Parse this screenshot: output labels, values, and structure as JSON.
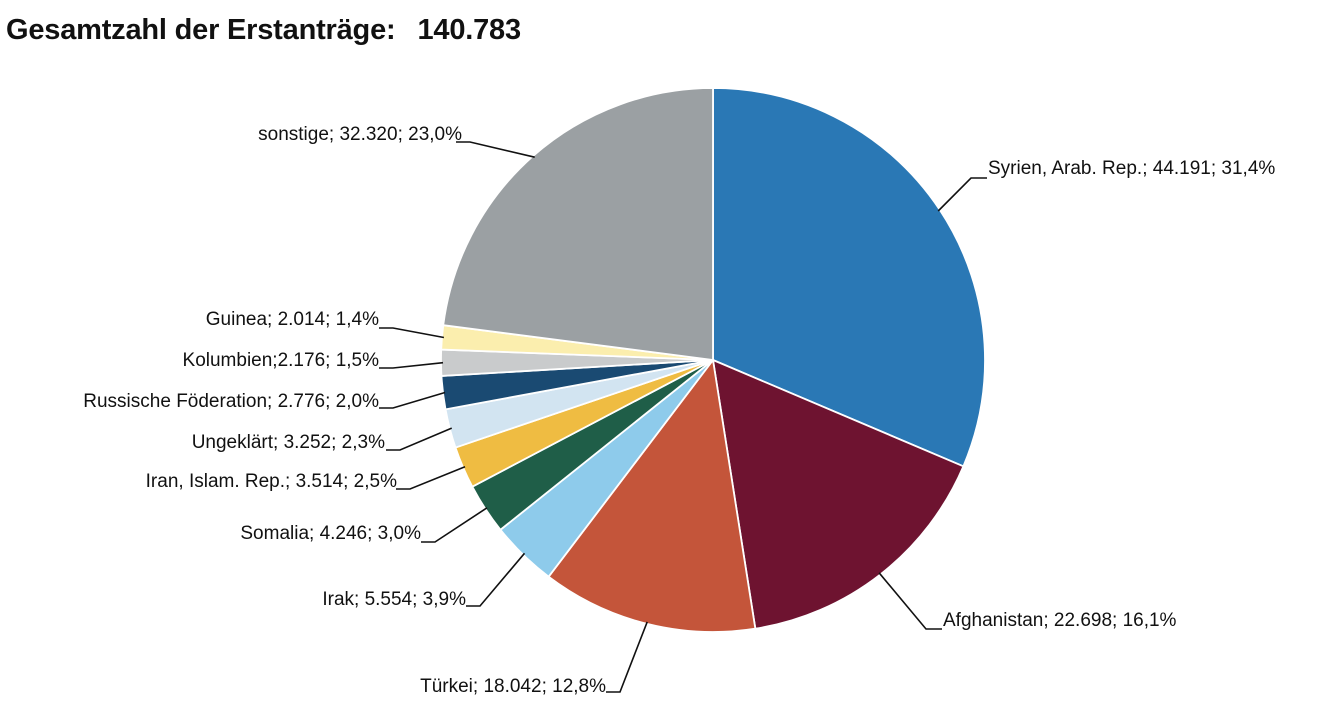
{
  "title": {
    "label": "Gesamtzahl der Erstanträge:",
    "total": "140.783"
  },
  "chart_data": {
    "type": "pie",
    "title": "Gesamtzahl der Erstanträge: 140.783",
    "slices": [
      {
        "name": "Syrien, Arab. Rep.",
        "value": 44191,
        "percent": "31,4%",
        "label": "Syrien, Arab. Rep.; 44.191; 31,4%",
        "color": "#2a78b5"
      },
      {
        "name": "Afghanistan",
        "value": 22698,
        "percent": "16,1%",
        "label": "Afghanistan; 22.698; 16,1%",
        "color": "#6e1330"
      },
      {
        "name": "Türkei",
        "value": 18042,
        "percent": "12,8%",
        "label": "Türkei; 18.042; 12,8%",
        "color": "#c4553a"
      },
      {
        "name": "Irak",
        "value": 5554,
        "percent": "3,9%",
        "label": "Irak; 5.554; 3,9%",
        "color": "#8ecbeb"
      },
      {
        "name": "Somalia",
        "value": 4246,
        "percent": "3,0%",
        "label": "Somalia; 4.246; 3,0%",
        "color": "#1f5e48"
      },
      {
        "name": "Iran, Islam. Rep.",
        "value": 3514,
        "percent": "2,5%",
        "label": "Iran, Islam. Rep.; 3.514; 2,5%",
        "color": "#efbc42"
      },
      {
        "name": "Ungeklärt",
        "value": 3252,
        "percent": "2,3%",
        "label": "Ungeklärt; 3.252; 2,3%",
        "color": "#d2e4f1"
      },
      {
        "name": "Russische Föderation",
        "value": 2776,
        "percent": "2,0%",
        "label": "Russische Föderation; 2.776; 2,0%",
        "color": "#1a4a72"
      },
      {
        "name": "Kolumbien",
        "value": 2176,
        "percent": "1,5%",
        "label": "Kolumbien;2.176; 1,5%",
        "color": "#c9cbcc"
      },
      {
        "name": "Guinea",
        "value": 2014,
        "percent": "1,4%",
        "label": "Guinea; 2.014; 1,4%",
        "color": "#fbeeae"
      },
      {
        "name": "sonstige",
        "value": 32320,
        "percent": "23,0%",
        "label": "sonstige; 32.320; 23,0%",
        "color": "#9ba0a3"
      }
    ],
    "legend": "none",
    "start": "12 o'clock",
    "direction": "clockwise"
  }
}
